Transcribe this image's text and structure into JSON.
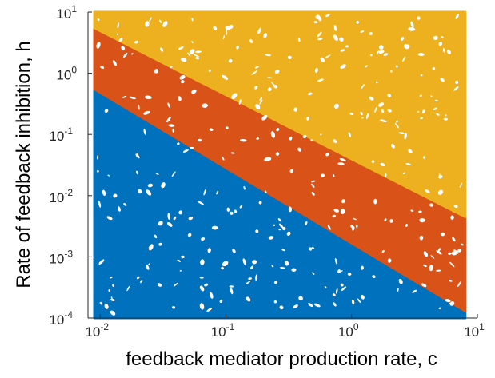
{
  "chart_data": {
    "type": "scatter",
    "title": "",
    "xlabel": "feedback mediator production rate, c",
    "ylabel": "Rate of feedback inhibition, h",
    "x_scale": "log",
    "y_scale": "log",
    "xlim": [
      0.008,
      10
    ],
    "ylim": [
      0.0001,
      10
    ],
    "grid": false,
    "legend": "none",
    "x_ticks": [
      {
        "value": 0.01,
        "base": "10",
        "exp": "-2"
      },
      {
        "value": 0.1,
        "base": "10",
        "exp": "-1"
      },
      {
        "value": 1,
        "base": "10",
        "exp": "0"
      },
      {
        "value": 10,
        "base": "10",
        "exp": "1"
      }
    ],
    "y_ticks": [
      {
        "value": 0.0001,
        "base": "10",
        "exp": "-4"
      },
      {
        "value": 0.001,
        "base": "10",
        "exp": "-3"
      },
      {
        "value": 0.01,
        "base": "10",
        "exp": "-2"
      },
      {
        "value": 0.1,
        "base": "10",
        "exp": "-1"
      },
      {
        "value": 1,
        "base": "10",
        "exp": "0"
      },
      {
        "value": 10,
        "base": "10",
        "exp": "1"
      }
    ],
    "series": [
      {
        "color": "#0072BD",
        "region": "below lower boundary",
        "region_polygon": [
          [
            0.009,
            0.0001
          ],
          [
            0.009,
            0.55
          ],
          [
            8,
            0.00013
          ],
          [
            8,
            0.0001
          ]
        ]
      },
      {
        "color": "#D95319",
        "region": "between boundaries",
        "region_polygon": [
          [
            0.009,
            0.55
          ],
          [
            0.009,
            5.5
          ],
          [
            8,
            0.0045
          ],
          [
            8,
            0.00013
          ]
        ]
      },
      {
        "color": "#EDB120",
        "region": "above upper boundary",
        "region_polygon": [
          [
            0.009,
            5.5
          ],
          [
            0.009,
            10
          ],
          [
            8,
            10
          ],
          [
            8,
            0.0045
          ]
        ]
      }
    ],
    "boundaries": [
      {
        "name": "lower",
        "points": [
          [
            0.009,
            0.55
          ],
          [
            8,
            0.00013
          ]
        ]
      },
      {
        "name": "upper",
        "points": [
          [
            0.009,
            5.5
          ],
          [
            8,
            0.0045
          ]
        ]
      }
    ]
  }
}
